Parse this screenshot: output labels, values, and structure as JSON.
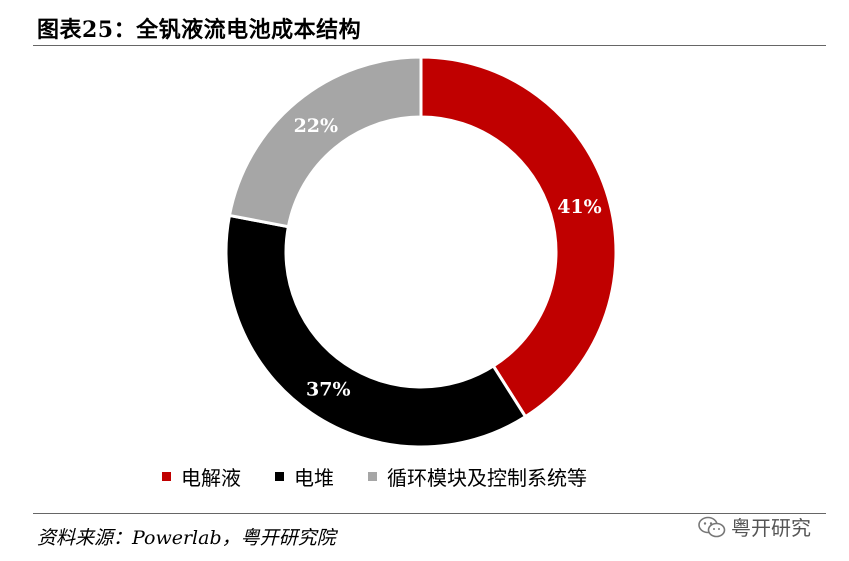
{
  "header": {
    "title": "图表25：全钒液流电池成本结构"
  },
  "chart_data": {
    "type": "pie",
    "variant": "donut",
    "title": "",
    "categories": [
      "电解液",
      "电堆",
      "循环模块及控制系统等"
    ],
    "values": [
      41,
      37,
      22
    ],
    "value_labels": [
      "41%",
      "37%",
      "22%"
    ],
    "colors": [
      "#C00000",
      "#000000",
      "#A6A6A6"
    ],
    "legend_position": "bottom"
  },
  "footer": {
    "source": "资料来源：Powerlab，粤开研究院",
    "watermark": "粤开研究",
    "watermark_icon": "wechat-icon"
  }
}
